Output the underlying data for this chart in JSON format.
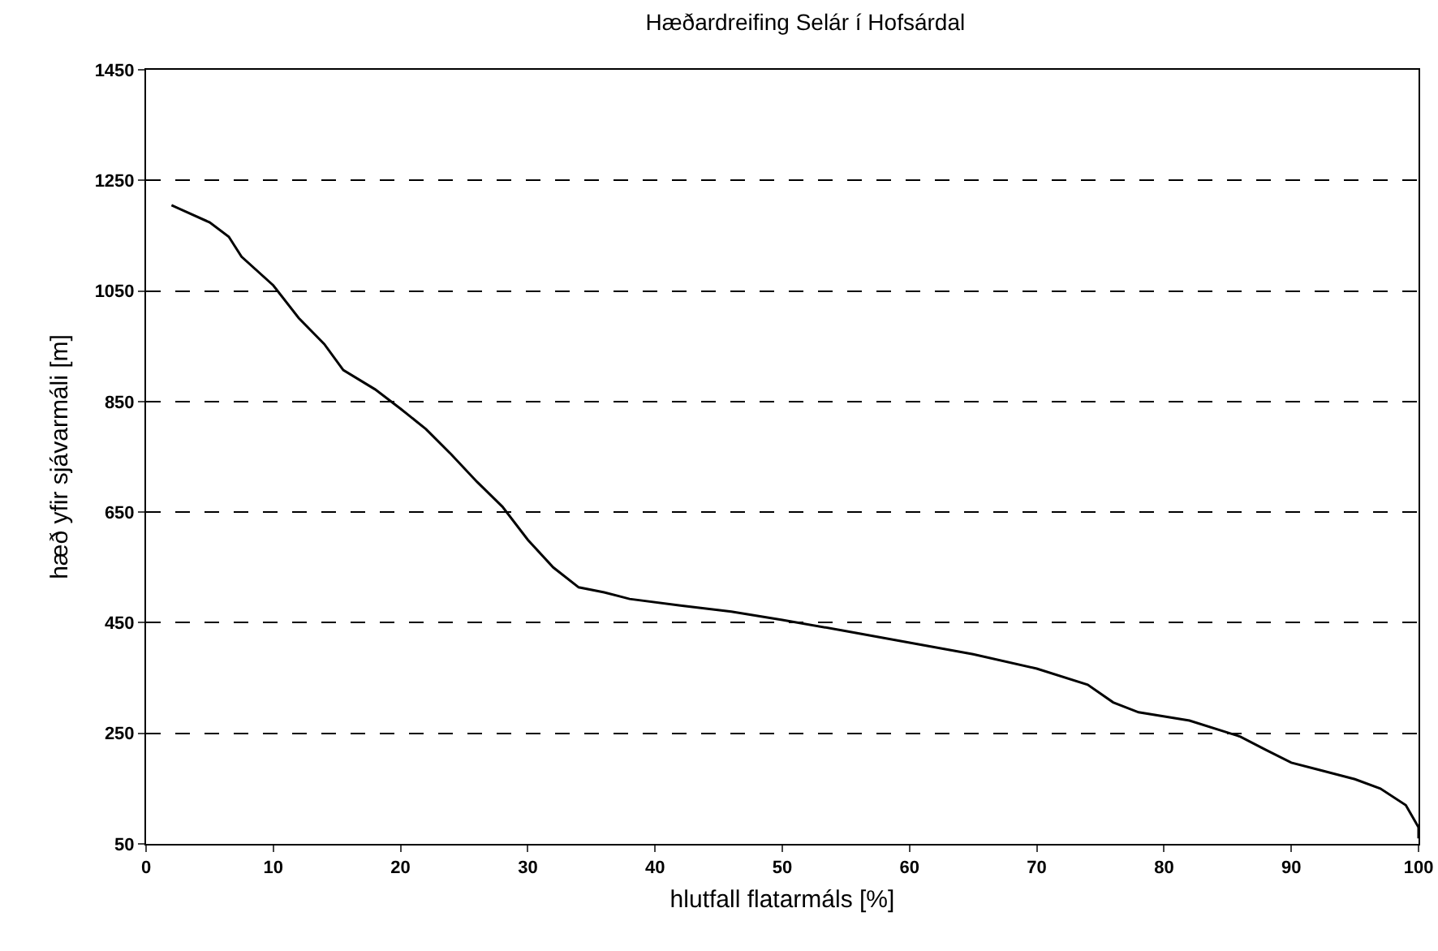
{
  "chart_data": {
    "type": "line",
    "title": "Hæðardreifing Selár í Hofsárdal",
    "xlabel": "hlutfall flatarmáls [%]",
    "ylabel": "hæð yfir sjávarmáli [m]",
    "x": [
      2,
      5,
      6.5,
      7.5,
      10,
      12,
      14,
      15.5,
      18,
      20,
      22,
      24,
      26,
      28,
      30,
      32,
      34,
      36,
      38,
      42,
      46,
      50,
      55,
      60,
      65,
      70,
      74,
      76,
      78,
      82,
      86,
      88,
      90,
      92,
      95,
      97,
      99,
      100,
      100
    ],
    "series": [
      {
        "color": "#000000",
        "values": [
          1205,
          1174,
          1148,
          1112,
          1060,
          1001,
          954,
          907,
          872,
          837,
          800,
          754,
          705,
          660,
          600,
          550,
          514,
          505,
          493,
          481,
          470,
          455,
          435,
          414,
          393,
          367,
          338,
          306,
          288,
          273,
          244,
          220,
          197,
          185,
          167,
          150,
          120,
          80,
          60
        ]
      }
    ],
    "xlim": [
      0,
      100
    ],
    "xticks": [
      0,
      10,
      20,
      30,
      40,
      50,
      60,
      70,
      80,
      90,
      100
    ],
    "ylim": [
      50,
      1450
    ],
    "yticks": [
      50,
      250,
      450,
      650,
      850,
      1050,
      1250,
      1450
    ],
    "grid": "y",
    "line_style": "solid",
    "marker": "none"
  }
}
